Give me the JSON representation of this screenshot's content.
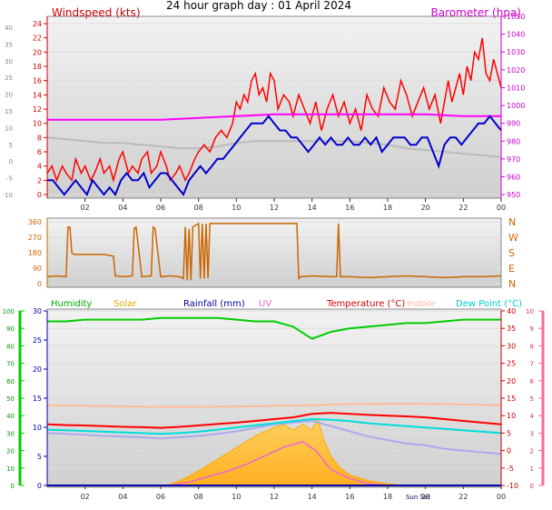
{
  "title": "24 hour graph day : 01 April 2024",
  "colors": {
    "wind_avg": "#0000cc",
    "wind_gust": "#ff0000",
    "barometer": "#ff00ff",
    "pressure_trend": "#bbbbbb",
    "direction": "#cc6600",
    "humidity": "#00cc00",
    "solar": "#ffaa00",
    "rain": "#0000aa",
    "uv": "#ee66cc",
    "temperature": "#ff0000",
    "indoor": "#ffbb99",
    "dewpoint": "#00dddd",
    "apparent": "#aaaaee",
    "axis_green": "#00cc00",
    "axis_pink": "#ff6699"
  },
  "chart_data": [
    {
      "type": "line",
      "name": "wind-barometer",
      "left_axis_title": "Windspeed (kts)",
      "right_axis_title": "Barometer (hpa)",
      "x_labels": [
        "02",
        "04",
        "06",
        "08",
        "10",
        "12",
        "14",
        "16",
        "18",
        "20",
        "22",
        "00"
      ],
      "x_ticks": [
        2,
        4,
        6,
        8,
        10,
        12,
        14,
        16,
        18,
        20,
        22,
        24
      ],
      "xlim": [
        0,
        24
      ],
      "left_ticks": [
        0,
        2,
        4,
        6,
        8,
        10,
        12,
        14,
        16,
        18,
        20,
        22,
        24
      ],
      "left_lim": [
        0,
        25
      ],
      "outer_left_ticks": [
        "-10",
        "-5",
        "0",
        "5",
        "10",
        "15",
        "20",
        "25",
        "30",
        "35",
        "40"
      ],
      "right_ticks": [
        950,
        960,
        970,
        980,
        990,
        1000,
        1010,
        1020,
        1030,
        1040,
        1050
      ],
      "right_lim": [
        948,
        1050
      ],
      "series": [
        {
          "key": "gust",
          "axis": "left",
          "x": [
            0,
            0.25,
            0.5,
            0.8,
            1.0,
            1.3,
            1.5,
            1.8,
            2.0,
            2.3,
            2.5,
            2.8,
            3.0,
            3.3,
            3.5,
            3.8,
            4.0,
            4.3,
            4.5,
            4.8,
            5.0,
            5.3,
            5.5,
            5.8,
            6.0,
            6.3,
            6.5,
            6.8,
            7.0,
            7.3,
            7.5,
            7.8,
            8.0,
            8.3,
            8.6,
            8.9,
            9.2,
            9.5,
            9.8,
            10.0,
            10.2,
            10.4,
            10.6,
            10.8,
            11.0,
            11.2,
            11.4,
            11.6,
            11.8,
            12.0,
            12.2,
            12.5,
            12.8,
            13.0,
            13.3,
            13.6,
            13.9,
            14.2,
            14.5,
            14.8,
            15.1,
            15.4,
            15.7,
            16.0,
            16.3,
            16.6,
            16.9,
            17.2,
            17.5,
            17.8,
            18.1,
            18.4,
            18.7,
            19.0,
            19.3,
            19.6,
            19.9,
            20.2,
            20.5,
            20.8,
            21.0,
            21.2,
            21.4,
            21.6,
            21.8,
            22.0,
            22.2,
            22.4,
            22.6,
            22.8,
            23.0,
            23.2,
            23.4,
            23.6,
            23.8,
            24.0
          ],
          "y": [
            3,
            4,
            2,
            4,
            3,
            2,
            5,
            3,
            4,
            2,
            3,
            5,
            3,
            4,
            2,
            5,
            6,
            3,
            4,
            3,
            5,
            6,
            3,
            4,
            6,
            4,
            2,
            3,
            4,
            2,
            3,
            5,
            6,
            7,
            6,
            8,
            9,
            8,
            10,
            13,
            12,
            14,
            13,
            16,
            17,
            14,
            15,
            13,
            17,
            16,
            12,
            14,
            13,
            11,
            14,
            12,
            10,
            13,
            9,
            12,
            14,
            11,
            13,
            10,
            12,
            9,
            14,
            12,
            11,
            15,
            13,
            12,
            16,
            14,
            11,
            13,
            15,
            12,
            14,
            10,
            13,
            16,
            13,
            15,
            17,
            14,
            18,
            16,
            20,
            19,
            22,
            17,
            16,
            19,
            17,
            15
          ]
        },
        {
          "key": "average",
          "axis": "left",
          "x": [
            0,
            0.3,
            0.6,
            0.9,
            1.2,
            1.5,
            1.8,
            2.1,
            2.4,
            2.7,
            3.0,
            3.3,
            3.6,
            3.9,
            4.2,
            4.5,
            4.8,
            5.1,
            5.4,
            5.7,
            6.0,
            6.3,
            6.6,
            6.9,
            7.2,
            7.5,
            7.8,
            8.1,
            8.4,
            8.7,
            9.0,
            9.3,
            9.6,
            9.9,
            10.2,
            10.5,
            10.8,
            11.1,
            11.4,
            11.7,
            12.0,
            12.3,
            12.6,
            12.9,
            13.2,
            13.5,
            13.8,
            14.1,
            14.4,
            14.7,
            15.0,
            15.3,
            15.6,
            15.9,
            16.2,
            16.5,
            16.8,
            17.1,
            17.4,
            17.7,
            18.0,
            18.3,
            18.6,
            18.9,
            19.2,
            19.5,
            19.8,
            20.1,
            20.4,
            20.7,
            21.0,
            21.3,
            21.6,
            21.9,
            22.2,
            22.5,
            22.8,
            23.1,
            23.4,
            23.7,
            24.0
          ],
          "y": [
            2,
            2,
            1,
            0,
            1,
            2,
            1,
            0,
            2,
            1,
            0,
            1,
            0,
            2,
            3,
            2,
            2,
            3,
            1,
            2,
            3,
            3,
            2,
            1,
            0,
            2,
            3,
            4,
            3,
            4,
            5,
            5,
            6,
            7,
            8,
            9,
            10,
            10,
            10,
            11,
            10,
            9,
            9,
            8,
            8,
            7,
            6,
            7,
            8,
            7,
            8,
            7,
            7,
            8,
            7,
            7,
            8,
            7,
            8,
            6,
            7,
            8,
            8,
            8,
            7,
            7,
            8,
            8,
            6,
            4,
            7,
            8,
            8,
            7,
            8,
            9,
            10,
            10,
            11,
            10,
            9
          ]
        },
        {
          "key": "barometer",
          "axis": "right",
          "x": [
            0,
            2,
            4,
            6,
            8,
            10,
            12,
            14,
            16,
            18,
            20,
            22,
            24
          ],
          "y": [
            992,
            992,
            992,
            992,
            993,
            994,
            995,
            995,
            995,
            995,
            995,
            994,
            994
          ]
        },
        {
          "key": "pressure-trend",
          "axis": "right",
          "x": [
            0,
            1,
            2,
            3,
            4,
            5,
            6,
            7,
            8,
            9,
            10,
            11,
            12,
            13,
            14,
            15,
            16,
            17,
            18,
            19,
            20,
            21,
            22,
            23,
            24
          ],
          "y": [
            982,
            981,
            980,
            979,
            979,
            978,
            977,
            976,
            976,
            977,
            979,
            980,
            980,
            980,
            980,
            980,
            980,
            979,
            978,
            976,
            975,
            974,
            973,
            972,
            971
          ]
        }
      ]
    },
    {
      "type": "scatter",
      "name": "wind-direction",
      "left_ticks": [
        "0",
        "90",
        "180",
        "270",
        "360"
      ],
      "right_labels": [
        "N",
        "E",
        "S",
        "W",
        "N"
      ],
      "ylim": [
        0,
        360
      ],
      "xlim": [
        0,
        24
      ],
      "series": [
        {
          "key": "direction",
          "x": [
            0,
            0.5,
            1.0,
            1.1,
            1.2,
            1.3,
            1.4,
            2.0,
            3.0,
            3.5,
            3.6,
            4.0,
            4.5,
            4.6,
            4.7,
            5.0,
            5.5,
            5.6,
            5.7,
            6.0,
            6.5,
            7.0,
            7.2,
            7.3,
            7.4,
            7.5,
            7.6,
            7.7,
            8.0,
            8.1,
            8.2,
            8.3,
            8.4,
            8.5,
            8.6,
            8.7,
            9.0,
            10.0,
            11.0,
            12.0,
            13.0,
            13.2,
            13.3,
            13.4,
            14.0,
            15.0,
            15.3,
            15.4,
            15.5,
            16.0,
            17.0,
            18.0,
            19.0,
            20.0,
            21.0,
            22.0,
            23.0,
            24.0
          ],
          "y": [
            40,
            45,
            40,
            330,
            330,
            180,
            170,
            170,
            170,
            160,
            45,
            40,
            45,
            320,
            330,
            40,
            45,
            330,
            320,
            40,
            45,
            40,
            30,
            330,
            20,
            320,
            20,
            330,
            350,
            30,
            350,
            30,
            350,
            30,
            350,
            350,
            350,
            350,
            350,
            350,
            350,
            350,
            30,
            40,
            45,
            40,
            40,
            350,
            40,
            40,
            35,
            40,
            45,
            40,
            35,
            40,
            40,
            45
          ]
        }
      ]
    },
    {
      "type": "line",
      "name": "temperature-humidity",
      "legend": [
        "Humidity",
        "Solar",
        "Rainfall (mm)",
        "UV",
        "Temperature (°C)",
        "Indoor",
        "Dew Point (°C)"
      ],
      "x_labels": [
        "02",
        "04",
        "06",
        "08",
        "10",
        "12",
        "14",
        "16",
        "18",
        "Sun Set",
        "20",
        "22",
        "00"
      ],
      "x_ticks": [
        2,
        4,
        6,
        8,
        10,
        12,
        14,
        16,
        18,
        19.8,
        20,
        22,
        24
      ],
      "xlim": [
        0,
        24
      ],
      "humidity_ticks": [
        0,
        10,
        20,
        30,
        40,
        50,
        60,
        70,
        80,
        90,
        100
      ],
      "humidity_lim": [
        0,
        100
      ],
      "rain_ticks": [
        0,
        5,
        10,
        15,
        20,
        25,
        30
      ],
      "rain_lim": [
        0,
        30
      ],
      "temp_ticks": [
        -10,
        -5,
        0,
        5,
        10,
        15,
        20,
        25,
        30,
        35,
        40
      ],
      "temp_lim": [
        -10,
        40
      ],
      "uv_ticks": [
        0,
        1,
        2,
        3,
        4,
        5,
        6,
        7,
        8,
        9,
        10
      ],
      "uv_lim": [
        0,
        10
      ],
      "series": [
        {
          "key": "humidity",
          "axis": "humidity",
          "x": [
            0,
            1,
            2,
            3,
            4,
            5,
            6,
            7,
            8,
            9,
            10,
            11,
            12,
            13,
            14,
            15,
            16,
            17,
            18,
            19,
            20,
            21,
            22,
            23,
            24
          ],
          "y": [
            94,
            94,
            95,
            95,
            95,
            95,
            96,
            96,
            96,
            96,
            95,
            94,
            94,
            91,
            84,
            88,
            90,
            91,
            92,
            93,
            93,
            94,
            95,
            95,
            95
          ]
        },
        {
          "key": "temperature",
          "axis": "temp",
          "x": [
            0,
            1,
            2,
            3,
            4,
            5,
            6,
            7,
            8,
            9,
            10,
            11,
            12,
            13,
            14,
            15,
            16,
            17,
            18,
            19,
            20,
            21,
            22,
            23,
            24
          ],
          "y": [
            7.5,
            7.3,
            7.2,
            7.0,
            6.8,
            6.7,
            6.5,
            6.8,
            7.2,
            7.6,
            8.0,
            8.5,
            9.0,
            9.5,
            10.5,
            10.8,
            10.5,
            10.2,
            10.0,
            9.8,
            9.5,
            9.0,
            8.5,
            8.0,
            7.5
          ]
        },
        {
          "key": "indoor",
          "axis": "temp",
          "x": [
            0,
            2,
            4,
            6,
            8,
            10,
            12,
            14,
            16,
            18,
            20,
            22,
            24
          ],
          "y": [
            13.0,
            12.8,
            12.6,
            12.5,
            12.5,
            12.6,
            12.8,
            13.0,
            13.3,
            13.4,
            13.4,
            13.2,
            13.0
          ]
        },
        {
          "key": "dewpoint",
          "axis": "temp",
          "x": [
            0,
            1,
            2,
            3,
            4,
            5,
            6,
            7,
            8,
            9,
            10,
            11,
            12,
            13,
            14,
            15,
            16,
            17,
            18,
            19,
            20,
            21,
            22,
            23,
            24
          ],
          "y": [
            6.0,
            5.8,
            5.6,
            5.4,
            5.2,
            5.0,
            4.8,
            5.0,
            5.4,
            6.0,
            6.6,
            7.2,
            7.8,
            8.4,
            9.0,
            8.8,
            8.4,
            7.8,
            7.4,
            7.0,
            6.6,
            6.2,
            5.8,
            5.4,
            5.0
          ]
        },
        {
          "key": "apparent",
          "axis": "temp",
          "x": [
            0,
            1,
            2,
            3,
            4,
            5,
            6,
            7,
            8,
            9,
            10,
            11,
            12,
            13,
            14,
            15,
            16,
            17,
            18,
            19,
            20,
            21,
            22,
            23,
            24
          ],
          "y": [
            5.0,
            4.8,
            4.5,
            4.2,
            4.0,
            3.8,
            3.5,
            3.8,
            4.2,
            4.8,
            5.5,
            6.5,
            7.5,
            8.0,
            8.5,
            7.0,
            5.5,
            4.0,
            3.0,
            2.0,
            1.5,
            0.5,
            0.0,
            -0.5,
            -1.0
          ]
        },
        {
          "key": "uv",
          "axis": "uv",
          "x": [
            6.5,
            7.5,
            8.5,
            9.5,
            10.5,
            11.5,
            12.5,
            13.5,
            14.2,
            15,
            16,
            17,
            18
          ],
          "y": [
            0,
            0.2,
            0.5,
            0.8,
            1.2,
            1.7,
            2.2,
            2.5,
            2.0,
            0.9,
            0.4,
            0.1,
            0
          ]
        },
        {
          "key": "solar",
          "axis": "rain",
          "x": [
            6.3,
            7.0,
            8.0,
            9.0,
            10.0,
            11.0,
            12.0,
            12.5,
            13.0,
            13.5,
            14.0,
            14.3,
            14.6,
            15.0,
            15.5,
            16.0,
            17.0,
            18.0,
            18.8
          ],
          "y": [
            0,
            0.8,
            2.5,
            4.5,
            6.5,
            8.5,
            10.0,
            10.5,
            9.5,
            10.5,
            9.5,
            11.5,
            8.0,
            5.0,
            3.0,
            1.8,
            0.8,
            0.3,
            0
          ]
        },
        {
          "key": "rainfall",
          "axis": "rain",
          "x": [
            0,
            24
          ],
          "y": [
            0,
            0
          ]
        }
      ]
    }
  ]
}
